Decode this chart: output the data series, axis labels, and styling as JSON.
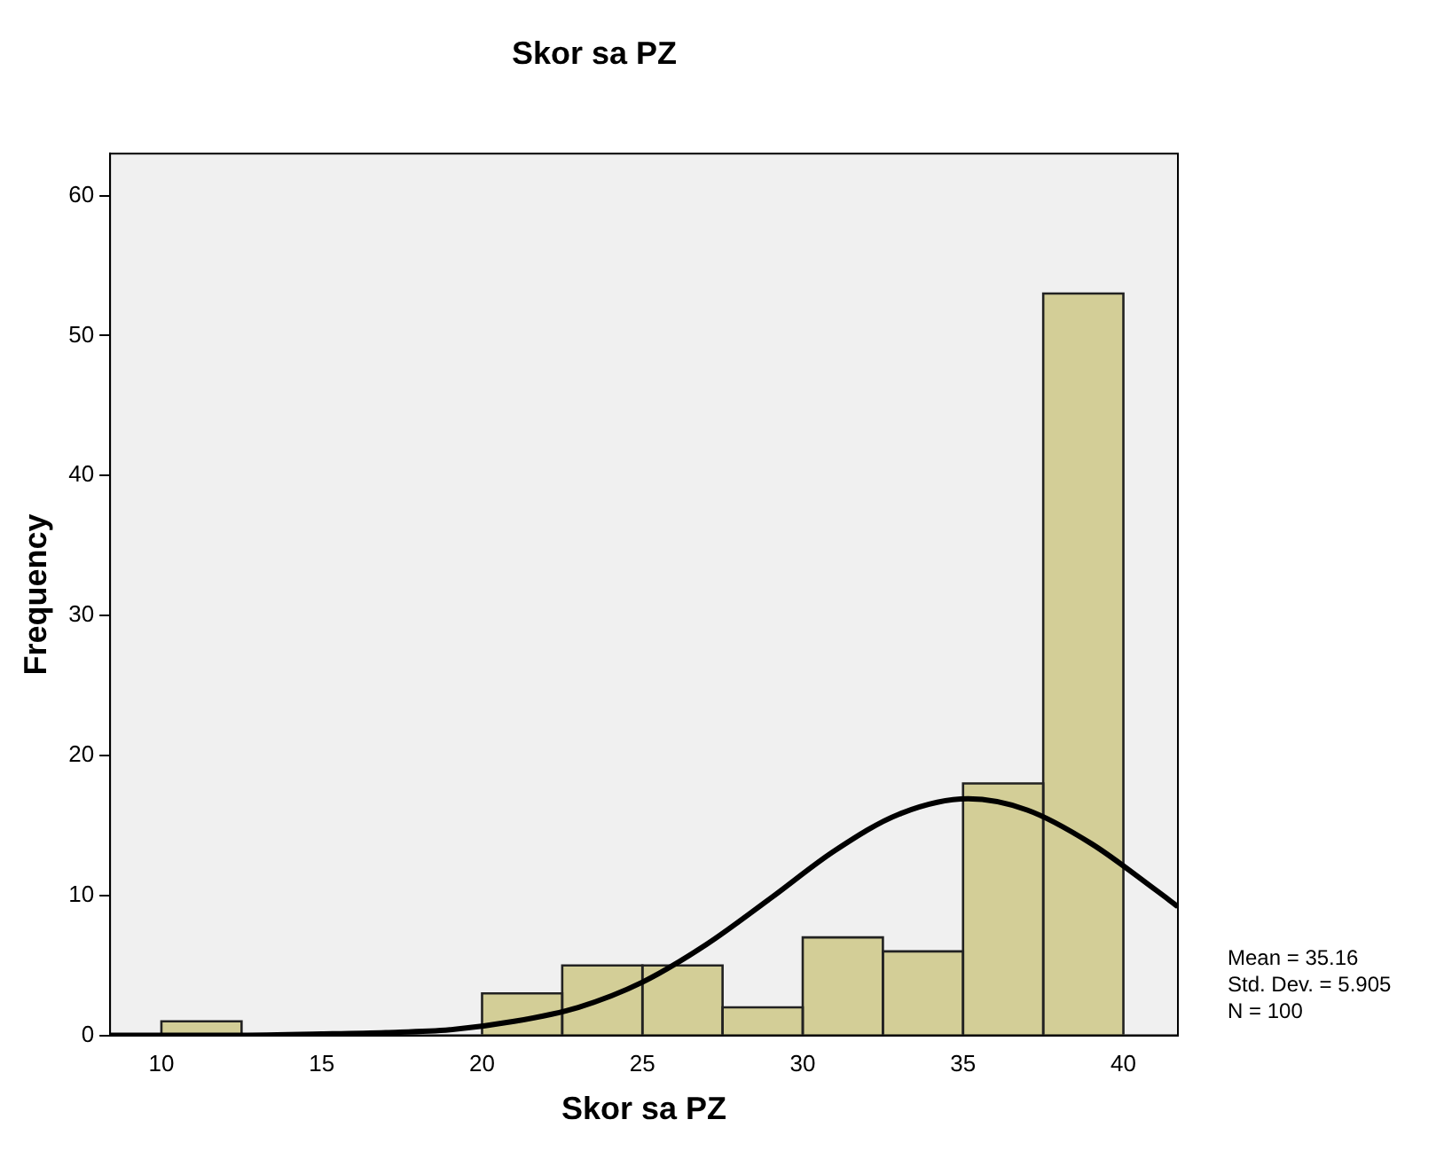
{
  "chart_data": {
    "type": "histogram",
    "title": "Skor sa PZ",
    "xlabel": "Skor sa PZ",
    "ylabel": "Frequency",
    "bins": [
      10,
      12.5,
      15,
      17.5,
      20,
      22.5,
      25,
      27.5,
      30,
      32.5,
      35,
      37.5,
      40
    ],
    "values": [
      1,
      0,
      0,
      0,
      3,
      5,
      5,
      2,
      7,
      6,
      18,
      53
    ],
    "color": "#d3ce97",
    "series": [
      {
        "type": "line",
        "color": "#000000",
        "x": [
          8.4,
          12,
          15,
          17,
          19,
          21,
          23,
          25,
          27,
          29,
          31,
          33,
          35.16,
          37,
          39,
          41,
          41.7
        ],
        "values": [
          0,
          0,
          0.1,
          0.2,
          0.4,
          1,
          2,
          3.8,
          6.5,
          9.8,
          13.2,
          15.8,
          16.9,
          16.1,
          13.7,
          10.4,
          9.2
        ]
      }
    ],
    "xlim": [
      8.4,
      41.7
    ],
    "xticks": [
      10,
      15,
      20,
      25,
      30,
      35,
      40
    ],
    "ylim": [
      0,
      63
    ],
    "yticks": [
      0,
      10,
      20,
      30,
      40,
      50,
      60
    ],
    "grid": false,
    "legend": false,
    "marker": "none",
    "line_style": "solid",
    "annotations": [
      "Mean = 35.16",
      "Std. Dev. = 5.905",
      "N = 100"
    ]
  }
}
